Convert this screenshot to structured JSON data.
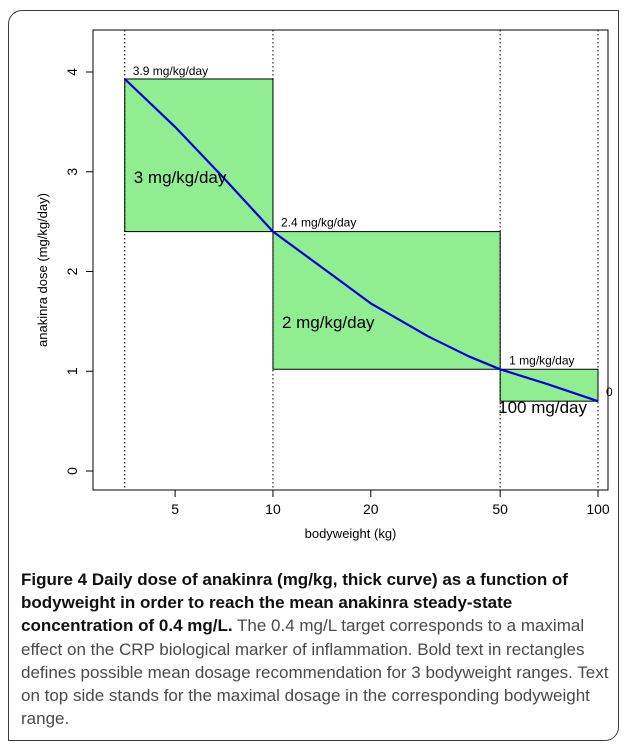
{
  "chart_data": {
    "type": "line",
    "xscale": "log",
    "xlabel": "bodyweight (kg)",
    "ylabel": "anakinra dose (mg/kg/day)",
    "xlim": [
      3,
      100
    ],
    "ylim": [
      0,
      4.3
    ],
    "xticks": [
      5,
      10,
      20,
      50,
      100
    ],
    "xtick_labels": [
      "5",
      "10",
      "20",
      "50",
      "100"
    ],
    "yticks": [
      0,
      1,
      2,
      3,
      4
    ],
    "ytick_labels": [
      "0",
      "1",
      "2",
      "3",
      "4"
    ],
    "grid": false,
    "vlines": [
      3.5,
      10,
      50,
      100
    ],
    "curve": {
      "x": [
        3.5,
        5,
        7,
        10,
        15,
        20,
        30,
        40,
        50,
        70,
        100
      ],
      "y": [
        3.93,
        3.45,
        2.95,
        2.4,
        1.98,
        1.68,
        1.35,
        1.15,
        1.02,
        0.87,
        0.7
      ]
    },
    "rectangles": [
      {
        "x0": 3.5,
        "x1": 10,
        "y0": 2.4,
        "y1": 3.93,
        "label": "3 mg/kg/day",
        "top_label": "3.9 mg/kg/day"
      },
      {
        "x0": 10,
        "x1": 50,
        "y0": 1.02,
        "y1": 2.4,
        "label": "2 mg/kg/day",
        "top_label": "2.4 mg/kg/day"
      },
      {
        "x0": 50,
        "x1": 100,
        "y0": 0.7,
        "y1": 1.02,
        "label": "100 mg/day",
        "top_label": "1 mg/kg/day"
      }
    ],
    "end_label": "0",
    "colors": {
      "rect_fill": "#90ee90",
      "curve": "#0000dd"
    }
  },
  "caption": {
    "figure_label": "Figure 4",
    "bold_text": "Daily dose of anakinra (mg/kg, thick curve) as a function of bodyweight in order to reach the mean anakinra steady-state concentration of 0.4 mg/L.",
    "body_text": "The 0.4 mg/L target corresponds to a maximal effect on the CRP biological marker of inflammation. Bold text in rectangles defines possible mean dosage recommendation for 3 bodyweight ranges. Text on top side stands for the maximal dosage in the corresponding bodyweight range."
  }
}
